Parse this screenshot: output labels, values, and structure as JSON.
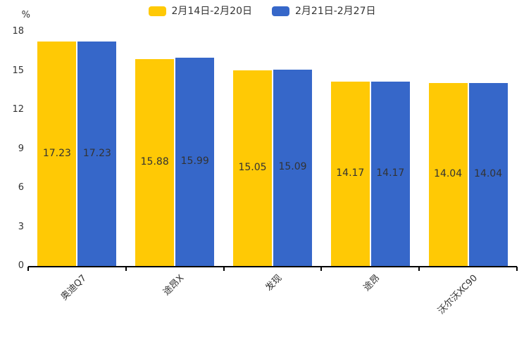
{
  "chart_data": {
    "type": "bar",
    "title": "",
    "unit_label": "%",
    "categories": [
      "奥迪Q7",
      "途昂X",
      "发现",
      "途昂",
      "沃尔沃XC90"
    ],
    "series": [
      {
        "name": "2月14日-2月20日",
        "color": "#FFC905",
        "values": [
          17.23,
          15.88,
          15.05,
          14.17,
          14.04
        ]
      },
      {
        "name": "2月21日-2月27日",
        "color": "#3667C9",
        "values": [
          17.23,
          15.99,
          15.09,
          14.17,
          14.04
        ]
      }
    ],
    "ylim": [
      0,
      18
    ],
    "yticks": [
      0,
      3,
      6,
      9,
      12,
      15,
      18
    ],
    "legend_position": "top",
    "grid": false,
    "value_labels": true,
    "value_label_color": "#333333",
    "axis_line_color": "#000000",
    "xlabel_rotation_deg": 45
  }
}
